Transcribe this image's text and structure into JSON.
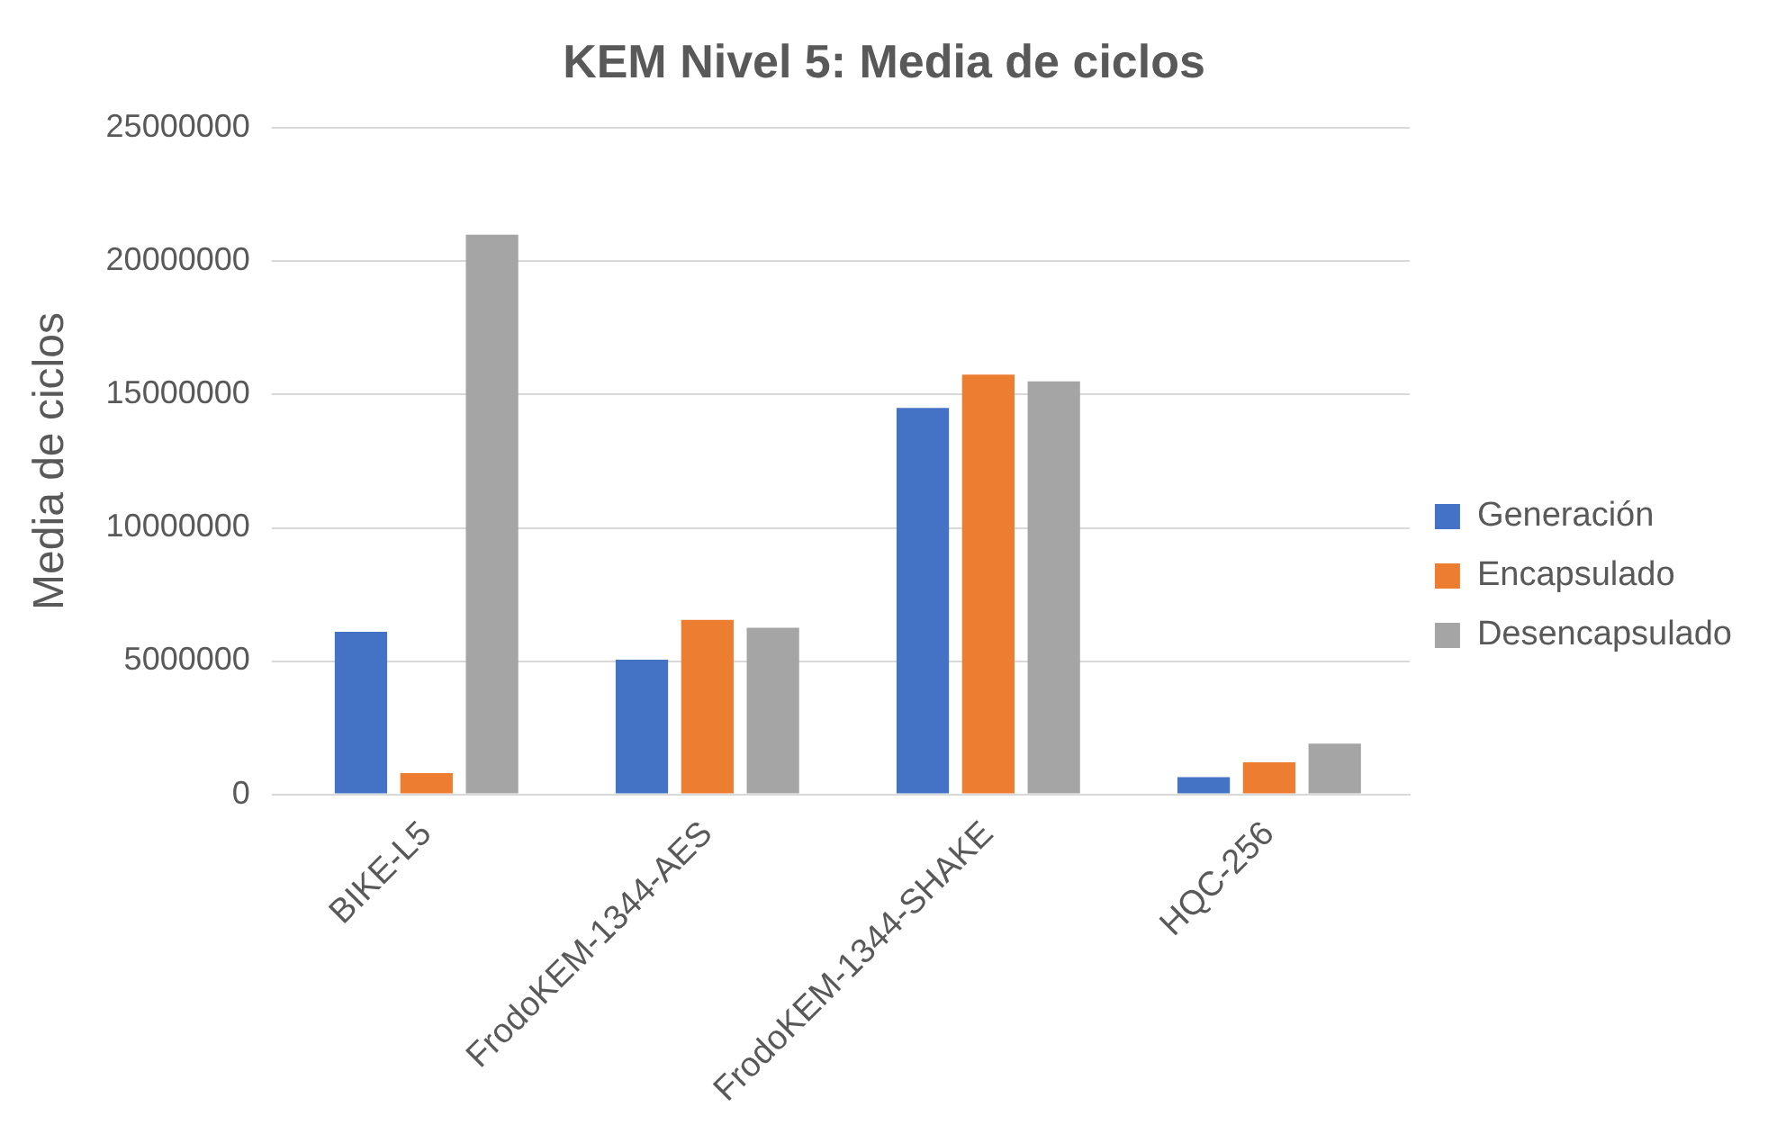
{
  "chart_data": {
    "type": "bar",
    "title": "KEM Nivel 5: Media de ciclos",
    "ylabel": "Media de ciclos",
    "categories": [
      "BIKE-L5",
      "FrodoKEM-1344-AES",
      "FrodoKEM-1344-SHAKE",
      "HQC-256"
    ],
    "series": [
      {
        "name": "Generación",
        "color": "#4472c4",
        "values": [
          6100000,
          5050000,
          14500000,
          640000
        ]
      },
      {
        "name": "Encapsulado",
        "color": "#ed7d31",
        "values": [
          800000,
          6550000,
          15750000,
          1200000
        ]
      },
      {
        "name": "Desencapsulado",
        "color": "#a5a5a5",
        "values": [
          21000000,
          6250000,
          15500000,
          1900000
        ]
      }
    ],
    "ylim": [
      0,
      25000000
    ],
    "yticks": [
      0,
      5000000,
      10000000,
      15000000,
      20000000,
      25000000
    ],
    "grid": "y",
    "legend": "right"
  }
}
